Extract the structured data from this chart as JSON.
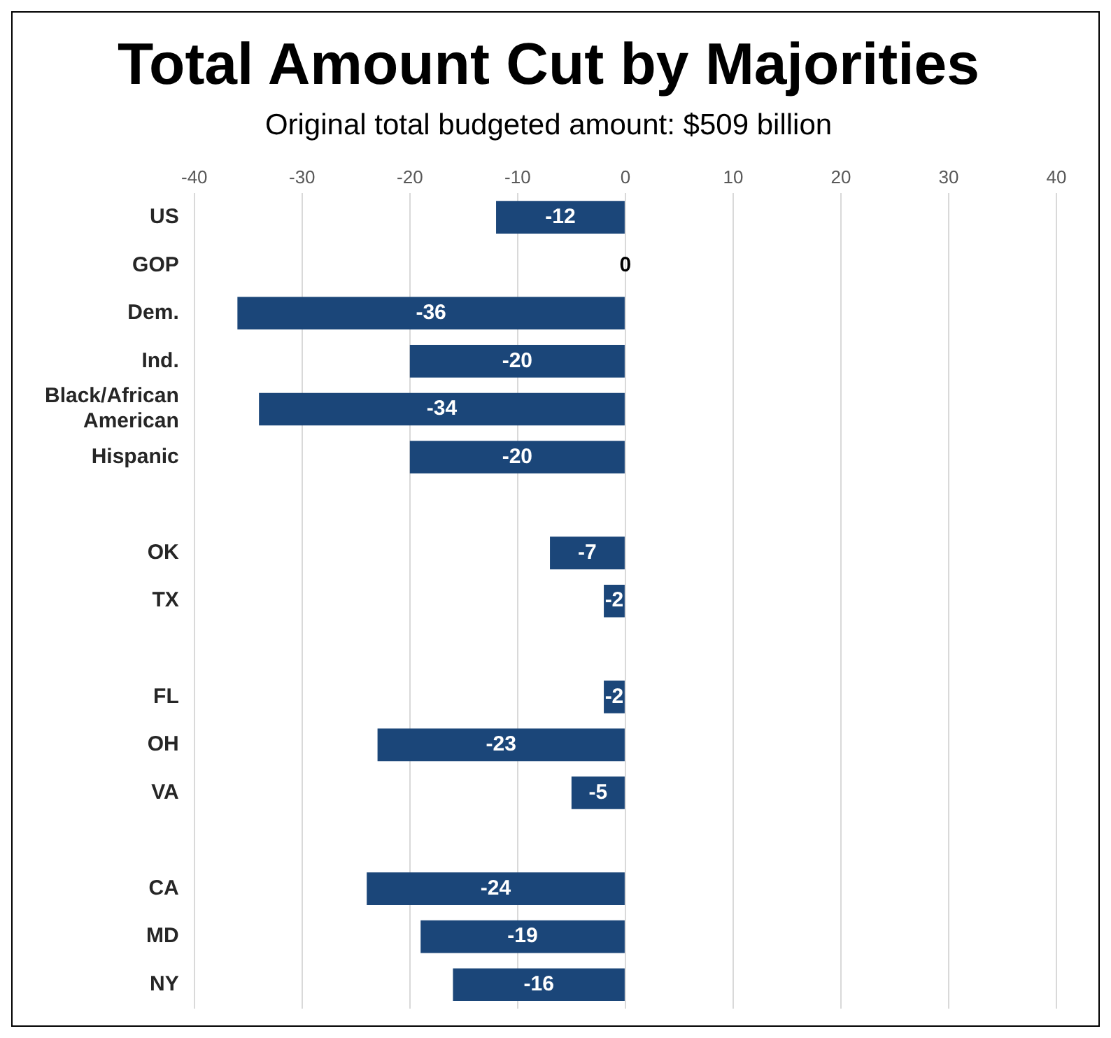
{
  "chart_data": {
    "type": "bar",
    "orientation": "horizontal",
    "title": "Total Amount Cut by Majorities",
    "subtitle": "Original total budgeted amount: $509 billion",
    "categories": [
      "US",
      "GOP",
      "Dem.",
      "Ind.",
      "Black/African American",
      "Hispanic",
      null,
      "OK",
      "TX",
      null,
      "FL",
      "OH",
      "VA",
      null,
      "CA",
      "MD",
      "NY"
    ],
    "values": [
      -12,
      0,
      -36,
      -20,
      -34,
      -20,
      null,
      -7,
      -2,
      null,
      -2,
      -23,
      -5,
      null,
      -24,
      -19,
      -16
    ],
    "color": "#1b4679",
    "xlim": [
      -40,
      40
    ],
    "xticks": [
      -40,
      -30,
      -20,
      -10,
      0,
      10,
      20,
      30,
      40
    ],
    "grid": "x",
    "data_labels": true,
    "legend": false
  }
}
